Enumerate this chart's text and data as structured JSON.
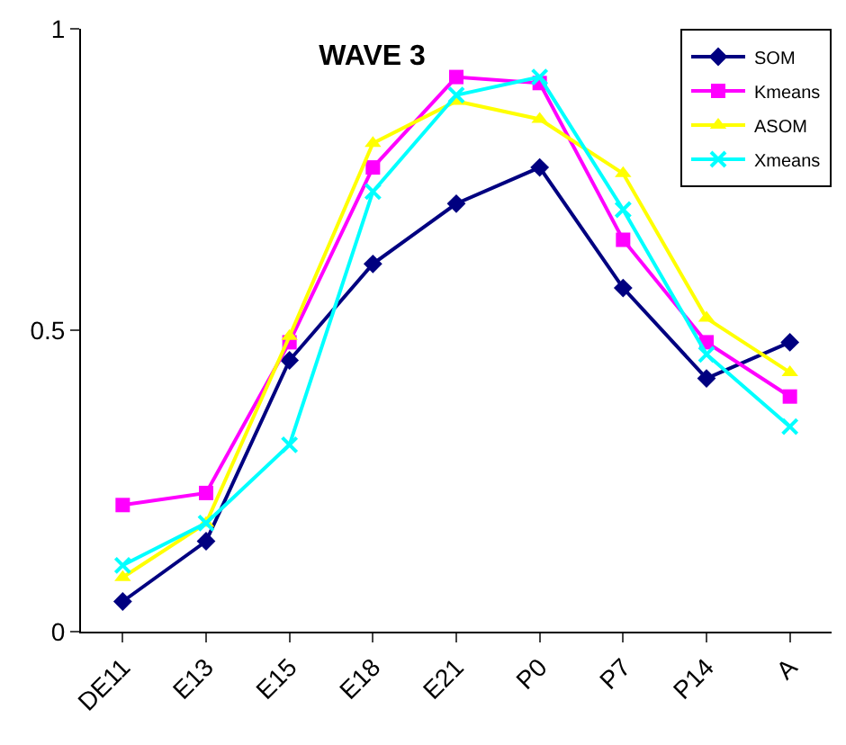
{
  "chart_data": {
    "type": "line",
    "title": "WAVE 3",
    "categories": [
      "DE11",
      "E13",
      "E15",
      "E18",
      "E21",
      "P0",
      "P7",
      "P14",
      "A"
    ],
    "series": [
      {
        "name": "SOM",
        "color": "#000080",
        "marker": "diamond",
        "values": [
          0.05,
          0.15,
          0.45,
          0.61,
          0.71,
          0.77,
          0.57,
          0.42,
          0.48
        ]
      },
      {
        "name": "Kmeans",
        "color": "#ff00ff",
        "marker": "square",
        "values": [
          0.21,
          0.23,
          0.48,
          0.77,
          0.92,
          0.91,
          0.65,
          0.48,
          0.39
        ]
      },
      {
        "name": "ASOM",
        "color": "#ffff00",
        "marker": "triangle",
        "values": [
          0.09,
          0.18,
          0.49,
          0.81,
          0.88,
          0.85,
          0.76,
          0.52,
          0.43
        ]
      },
      {
        "name": "Xmeans",
        "color": "#00ffff",
        "marker": "cross",
        "values": [
          0.11,
          0.18,
          0.31,
          0.73,
          0.89,
          0.92,
          0.7,
          0.46,
          0.34
        ]
      }
    ],
    "ylim": [
      0,
      1
    ],
    "yticks": [
      0,
      0.5,
      1
    ],
    "legend": "top right",
    "line_style": "solid"
  }
}
